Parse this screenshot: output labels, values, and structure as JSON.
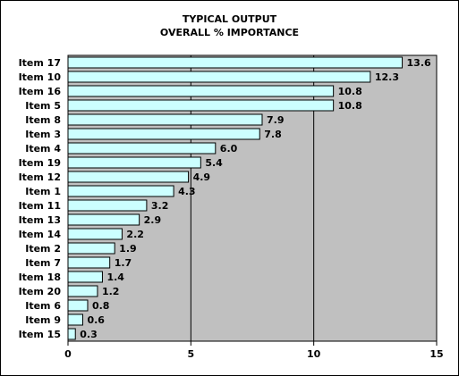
{
  "colors": {
    "plot_background": "#c0c0c0",
    "bar_fill": "#ccffff",
    "bar_stroke": "#000000",
    "gridline": "#000000",
    "text": "#000000"
  },
  "chart_data": {
    "type": "bar",
    "orientation": "horizontal",
    "title": [
      "TYPICAL OUTPUT",
      "OVERALL % IMPORTANCE"
    ],
    "xlabel": "",
    "ylabel": "",
    "xlim": [
      0,
      15
    ],
    "x_ticks": [
      "0",
      "5",
      "10",
      "15"
    ],
    "grid": "vertical gridlines at 5, 10",
    "legend": "none",
    "categories": [
      "Item 17",
      "Item 10",
      "Item 16",
      "Item 5",
      "Item 8",
      "Item 3",
      "Item 4",
      "Item 19",
      "Item 12",
      "Item 1",
      "Item 11",
      "Item 13",
      "Item 14",
      "Item 2",
      "Item 7",
      "Item 18",
      "Item 20",
      "Item 6",
      "Item 9",
      "Item 15"
    ],
    "values": [
      13.6,
      12.3,
      10.8,
      10.8,
      7.9,
      7.8,
      6.0,
      5.4,
      4.9,
      4.3,
      3.2,
      2.9,
      2.2,
      1.9,
      1.7,
      1.4,
      1.2,
      0.8,
      0.6,
      0.3
    ],
    "data_labels": [
      "13.6",
      "12.3",
      "10.8",
      "10.8",
      "7.9",
      "7.8",
      "6.0",
      "5.4",
      "4.9",
      "4.3",
      "3.2",
      "2.9",
      "2.2",
      "1.9",
      "1.7",
      "1.4",
      "1.2",
      "0.8",
      "0.6",
      "0.3"
    ]
  }
}
